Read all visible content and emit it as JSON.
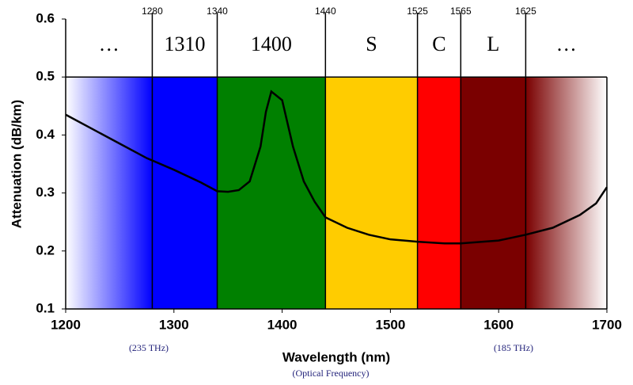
{
  "chart_data": {
    "type": "line",
    "xlabel": "Wavelength (nm)",
    "ylabel": "Attenuation (dB/km)",
    "annotations": [
      "(235 THz)",
      "(185 THz)",
      "(Optical Frequency)"
    ],
    "xlim": [
      1200,
      1700
    ],
    "xticks": [
      1200,
      1300,
      1400,
      1500,
      1600,
      1700
    ],
    "ylim": [
      0.1,
      0.6
    ],
    "yticks": [
      0.1,
      0.2,
      0.3,
      0.4,
      0.5,
      0.6
    ],
    "band_top": 0.5,
    "band_edges": [
      1280,
      1340,
      1440,
      1525,
      1565,
      1625
    ],
    "band_labels": [
      "…",
      "1310",
      "1400",
      "S",
      "C",
      "L",
      "…"
    ],
    "band_colors": [
      "#0000ff",
      "#0000ff",
      "#008000",
      "#ffcc00",
      "#ff0000",
      "#7a0000",
      "#7a0000"
    ],
    "color": "#000000",
    "x": [
      1200,
      1225,
      1250,
      1275,
      1300,
      1325,
      1340,
      1350,
      1360,
      1370,
      1380,
      1385,
      1390,
      1400,
      1410,
      1420,
      1430,
      1440,
      1460,
      1480,
      1500,
      1525,
      1550,
      1565,
      1600,
      1625,
      1650,
      1675,
      1690,
      1700
    ],
    "values": [
      0.435,
      0.41,
      0.385,
      0.36,
      0.34,
      0.318,
      0.303,
      0.302,
      0.305,
      0.32,
      0.38,
      0.44,
      0.475,
      0.46,
      0.38,
      0.32,
      0.285,
      0.258,
      0.24,
      0.228,
      0.22,
      0.216,
      0.213,
      0.213,
      0.218,
      0.228,
      0.24,
      0.262,
      0.282,
      0.31
    ]
  }
}
